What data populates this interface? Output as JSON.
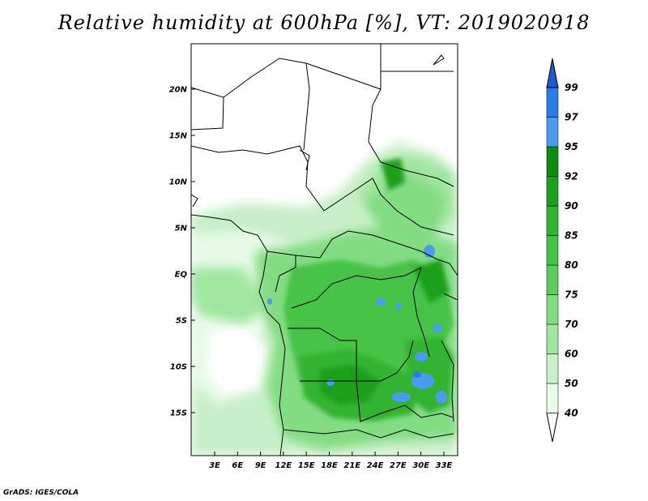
{
  "title": "Relative humidity at 600hPa [%], VT: 2019020918",
  "credit": "GrADS: IGES/COLA",
  "map": {
    "lon_range": [
      0,
      34.7
    ],
    "lat_range": [
      -19.7,
      24.5
    ],
    "lat_ticks": [
      "20N",
      "15N",
      "10N",
      "5N",
      "EQ",
      "5S",
      "10S",
      "15S"
    ],
    "lon_ticks": [
      "3E",
      "6E",
      "9E",
      "12E",
      "15E",
      "18E",
      "21E",
      "24E",
      "27E",
      "30E",
      "33E"
    ]
  },
  "colorbar": {
    "labels": [
      "40",
      "50",
      "60",
      "70",
      "75",
      "80",
      "85",
      "90",
      "92",
      "95",
      "97",
      "99"
    ],
    "colors": [
      "#ffffff",
      "#e6fae6",
      "#c8f0c8",
      "#a0e6a0",
      "#82dc82",
      "#5ccd5c",
      "#46c346",
      "#32b432",
      "#1ea01e",
      "#0f8c0f",
      "#4b9bf0",
      "#2d7be6",
      "#1e5ac8"
    ]
  }
}
